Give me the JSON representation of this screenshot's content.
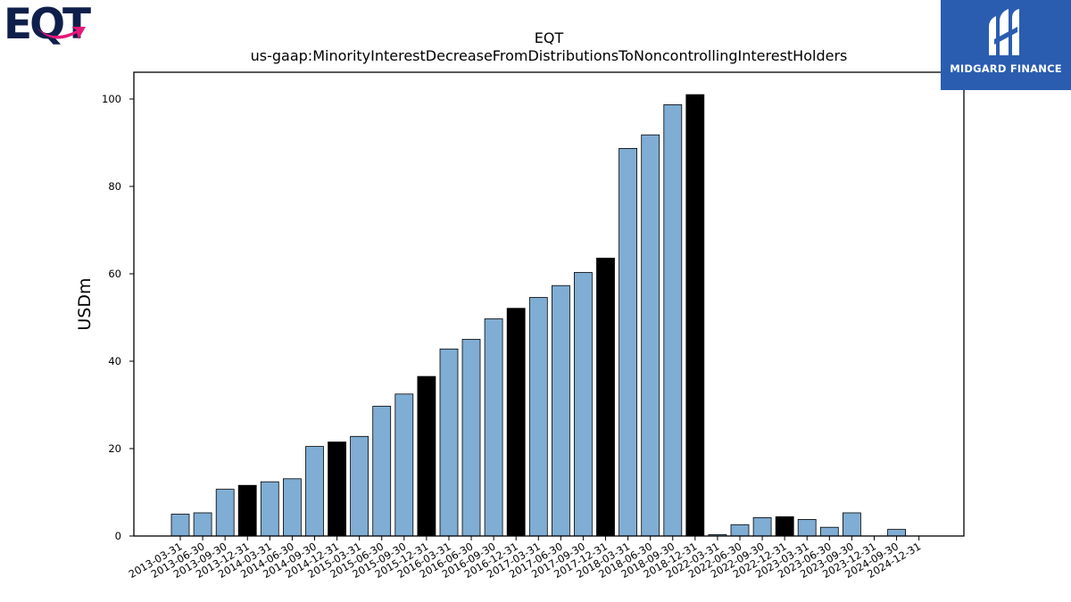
{
  "logos": {
    "left_text": "EQT",
    "right_text": "MIDGARD FINANCE"
  },
  "colors": {
    "bar_default": "#7fadd3",
    "bar_highlight": "#000000",
    "eqt_navy": "#0f1f4b",
    "eqt_arrow": "#e8177a",
    "midgard_blue": "#2a5db0"
  },
  "chart_data": {
    "type": "bar",
    "title": "EQT",
    "subtitle": "us-gaap:MinorityInterestDecreaseFromDistributionsToNoncontrollingInterestHolders",
    "xlabel": "",
    "ylabel": "USDm",
    "ylim": [
      0,
      106
    ],
    "yticks": [
      0,
      20,
      40,
      60,
      80,
      100
    ],
    "grid": false,
    "categories": [
      "2013-03-31",
      "2013-06-30",
      "2013-09-30",
      "2013-12-31",
      "2014-03-31",
      "2014-06-30",
      "2014-09-30",
      "2014-12-31",
      "2015-03-31",
      "2015-06-30",
      "2015-09-30",
      "2015-12-31",
      "2016-03-31",
      "2016-06-30",
      "2016-09-30",
      "2016-12-31",
      "2017-03-31",
      "2017-06-30",
      "2017-09-30",
      "2017-12-31",
      "2018-03-31",
      "2018-06-30",
      "2018-09-30",
      "2018-12-31",
      "2022-03-31",
      "2022-06-30",
      "2022-09-30",
      "2022-12-31",
      "2023-03-31",
      "2023-06-30",
      "2023-09-30",
      "2023-12-31",
      "2024-09-30",
      "2024-12-31"
    ],
    "values": [
      5.0,
      5.3,
      10.7,
      11.6,
      12.4,
      13.1,
      20.5,
      21.5,
      22.8,
      29.7,
      32.5,
      36.5,
      42.8,
      45.0,
      49.7,
      52.1,
      54.6,
      57.3,
      60.3,
      63.6,
      88.7,
      91.8,
      98.7,
      101.0,
      0.3,
      2.6,
      4.2,
      4.4,
      3.8,
      2.0,
      5.3,
      0.0,
      1.5,
      0.0
    ],
    "highlighted": [
      false,
      false,
      false,
      true,
      false,
      false,
      false,
      true,
      false,
      false,
      false,
      true,
      false,
      false,
      false,
      true,
      false,
      false,
      false,
      true,
      false,
      false,
      false,
      true,
      false,
      false,
      false,
      true,
      false,
      false,
      false,
      false,
      false,
      false
    ]
  }
}
